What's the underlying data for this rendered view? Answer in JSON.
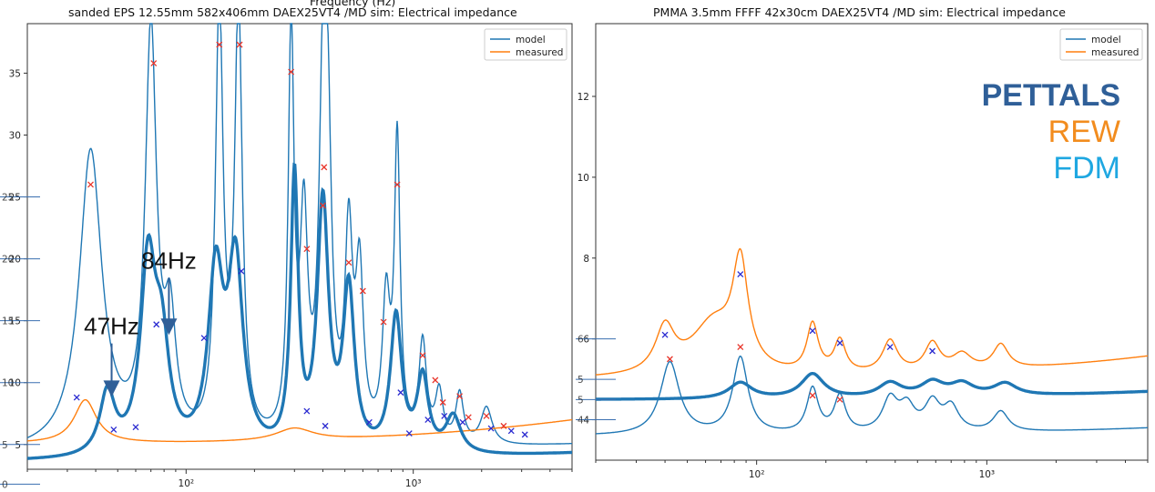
{
  "colors": {
    "model": "#1f77b4",
    "measured": "#ff7f0e",
    "pettals": "#2f5f98",
    "rew": "#f28c1e",
    "fdm": "#1ea7e1",
    "peak_red": "#e8352b",
    "peak_blue": "#2a2ad0"
  },
  "chart_data": [
    {
      "type": "line",
      "title": "sanded EPS 12.55mm 582x406mm DAEX25VT4 /MD sim: Electrical impedance",
      "ghost_title": "Frequency (Hz)",
      "xscale": "log",
      "xlim": [
        20,
        5000
      ],
      "ylim": [
        3,
        39
      ],
      "yticks": [
        5,
        10,
        15,
        20,
        25,
        30,
        35
      ],
      "xticks": [
        {
          "v": 100,
          "label": "10²"
        },
        {
          "v": 1000,
          "label": "10³"
        }
      ],
      "legend": {
        "position": "top-right",
        "entries": [
          "model",
          "measured"
        ]
      },
      "series": [
        {
          "name": "model",
          "style": "thin",
          "base": 4.3,
          "peaks": [
            [
              38,
              24,
              0.06
            ],
            [
              70,
              33,
              0.03
            ],
            [
              85,
              9,
              0.03
            ],
            [
              140,
              35,
              0.02
            ],
            [
              170,
              35,
              0.02
            ],
            [
              290,
              33,
              0.015
            ],
            [
              330,
              17,
              0.02
            ],
            [
              400,
              25,
              0.02
            ],
            [
              420,
              21,
              0.02
            ],
            [
              520,
              16,
              0.02
            ],
            [
              580,
              13,
              0.02
            ],
            [
              760,
              11,
              0.02
            ],
            [
              850,
              24,
              0.015
            ],
            [
              1100,
              8,
              0.02
            ],
            [
              1300,
              4,
              0.02
            ],
            [
              1600,
              4,
              0.02
            ],
            [
              2100,
              3,
              0.03
            ]
          ]
        },
        {
          "name": "measured",
          "style": "orange",
          "base": 5.1,
          "peaks": [
            [
              36,
              3.5,
              0.06
            ],
            [
              300,
              1,
              0.1
            ]
          ]
        },
        {
          "name": "thick",
          "style": "thick",
          "base": 3.6,
          "peaks": [
            [
              45,
              5,
              0.04
            ],
            [
              68,
              15,
              0.04
            ],
            [
              78,
              8,
              0.04
            ],
            [
              135,
              14,
              0.04
            ],
            [
              165,
              15,
              0.04
            ],
            [
              300,
              22,
              0.02
            ],
            [
              400,
              20,
              0.03
            ],
            [
              520,
              13,
              0.03
            ],
            [
              840,
              11,
              0.03
            ],
            [
              1100,
              6,
              0.03
            ],
            [
              1500,
              3,
              0.04
            ]
          ]
        }
      ],
      "markers_red": [
        [
          38,
          26
        ],
        [
          72,
          35.8
        ],
        [
          140,
          37.3
        ],
        [
          172,
          37.3
        ],
        [
          290,
          35.1
        ],
        [
          340,
          20.8
        ],
        [
          405,
          27.4
        ],
        [
          400,
          24.3
        ],
        [
          520,
          19.7
        ],
        [
          600,
          17.4
        ],
        [
          740,
          14.9
        ],
        [
          850,
          26
        ],
        [
          1100,
          12.2
        ],
        [
          1250,
          10.2
        ],
        [
          1350,
          8.4
        ],
        [
          1600,
          8.9
        ],
        [
          1750,
          7.2
        ],
        [
          2100,
          7.3
        ],
        [
          2500,
          6.5
        ]
      ],
      "markers_blue": [
        [
          33,
          8.8
        ],
        [
          48,
          6.2
        ],
        [
          60,
          6.4
        ],
        [
          74,
          14.7
        ],
        [
          120,
          13.6
        ],
        [
          175,
          19
        ],
        [
          340,
          7.7
        ],
        [
          410,
          6.5
        ],
        [
          640,
          6.8
        ],
        [
          880,
          9.2
        ],
        [
          960,
          5.9
        ],
        [
          1160,
          7
        ],
        [
          1370,
          7.3
        ],
        [
          1650,
          6.8
        ],
        [
          2200,
          6.3
        ],
        [
          2700,
          6.1
        ],
        [
          3100,
          5.8
        ]
      ],
      "annotations": [
        {
          "text": "84Hz",
          "at": [
            84,
            19.2
          ],
          "arrow_to": [
            84,
            14
          ]
        },
        {
          "text": "47Hz",
          "at": [
            47,
            13.9
          ],
          "arrow_to": [
            47,
            9
          ]
        }
      ],
      "ghost_ticks": [
        {
          "label": "25",
          "y": 25
        },
        {
          "label": "20",
          "y": 20
        },
        {
          "label": "15",
          "y": 15
        },
        {
          "label": "10",
          "y": 10
        },
        {
          "label": "5",
          "y": 5
        },
        {
          "label": "0",
          "y": 1.8
        }
      ]
    },
    {
      "type": "line",
      "title": "PMMA 3.5mm FFFF 42x30cm DAEX25VT4 /MD sim: Electrical impedance",
      "xscale": "log",
      "xlim": [
        20,
        5000
      ],
      "ylim": [
        3,
        13.8
      ],
      "yticks": [
        4,
        6,
        8,
        10,
        12
      ],
      "xticks": [
        {
          "v": 100,
          "label": "10²"
        },
        {
          "v": 1000,
          "label": "10³"
        }
      ],
      "legend": {
        "position": "top-right",
        "entries": [
          "model",
          "measured"
        ]
      },
      "series": [
        {
          "name": "model",
          "style": "thin",
          "base": 3.6,
          "peaks": [
            [
              42,
              1.8,
              0.05
            ],
            [
              85,
              1.9,
              0.04
            ],
            [
              175,
              1.1,
              0.03
            ],
            [
              230,
              0.9,
              0.03
            ],
            [
              380,
              0.8,
              0.04
            ],
            [
              450,
              0.6,
              0.04
            ],
            [
              580,
              0.7,
              0.04
            ],
            [
              700,
              0.6,
              0.04
            ],
            [
              1150,
              0.5,
              0.04
            ]
          ]
        },
        {
          "name": "measured",
          "style": "orange",
          "base": 5.0,
          "peaks": [
            [
              40,
              1.1,
              0.05
            ],
            [
              65,
              1.3,
              0.12
            ],
            [
              85,
              2.5,
              0.04
            ],
            [
              175,
              1.2,
              0.03
            ],
            [
              230,
              0.8,
              0.03
            ],
            [
              380,
              0.8,
              0.04
            ],
            [
              580,
              0.7,
              0.04
            ],
            [
              780,
              0.4,
              0.05
            ],
            [
              1150,
              0.6,
              0.04
            ]
          ]
        },
        {
          "name": "thick",
          "style": "thick",
          "base": 4.5,
          "peaks": [
            [
              85,
              0.4,
              0.06
            ],
            [
              175,
              0.6,
              0.06
            ],
            [
              380,
              0.35,
              0.06
            ],
            [
              580,
              0.35,
              0.06
            ],
            [
              780,
              0.3,
              0.06
            ],
            [
              1200,
              0.3,
              0.06
            ]
          ]
        }
      ],
      "markers_red": [
        [
          42,
          5.5
        ],
        [
          85,
          5.8
        ],
        [
          175,
          4.6
        ],
        [
          230,
          4.5
        ]
      ],
      "markers_blue": [
        [
          40,
          6.1
        ],
        [
          85,
          7.6
        ],
        [
          175,
          6.2
        ],
        [
          230,
          5.9
        ],
        [
          380,
          5.8
        ],
        [
          580,
          5.7
        ]
      ],
      "brand": [
        {
          "text": "PETTALS",
          "color": "pettals",
          "bold": true
        },
        {
          "text": "REW",
          "color": "rew",
          "bold": false
        },
        {
          "text": "FDM",
          "color": "fdm",
          "bold": false
        }
      ],
      "ghost_ticks": [
        {
          "label": "6",
          "y": 6
        },
        {
          "label": "5",
          "y": 5.0
        },
        {
          "label": "5",
          "y": 4.5
        },
        {
          "label": "4",
          "y": 4
        }
      ]
    }
  ]
}
